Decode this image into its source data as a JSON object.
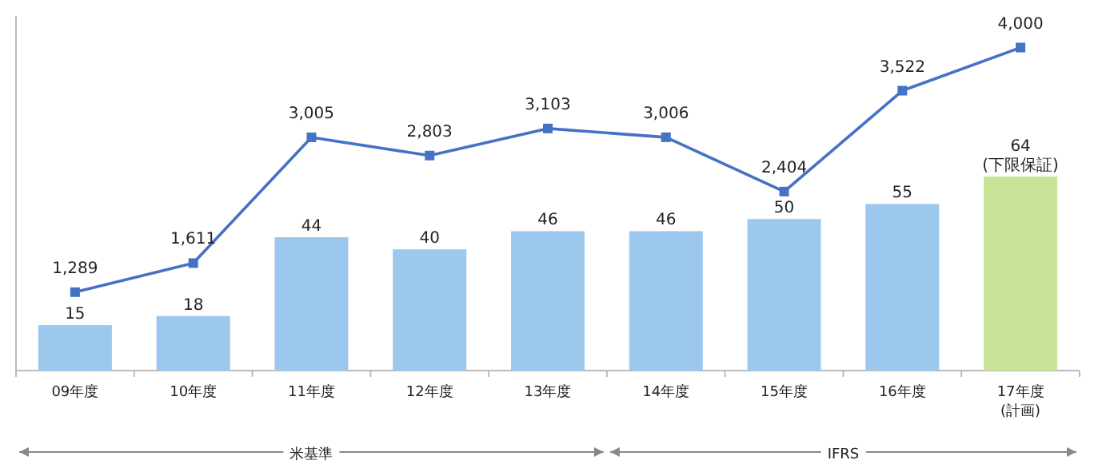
{
  "chart_data": {
    "type": "bar",
    "categories": [
      "09年度",
      "10年度",
      "11年度",
      "12年度",
      "13年度",
      "14年度",
      "15年度",
      "16年度",
      "17年度\n(計画)"
    ],
    "series": [
      {
        "colors": [
          "#9dc8ee",
          "#9dc8ee",
          "#9dc8ee",
          "#9dc8ee",
          "#9dc8ee",
          "#9dc8ee",
          "#9dc8ee",
          "#9dc8ee",
          "#c8e496"
        ],
        "values": [
          15,
          18,
          44,
          40,
          46,
          46,
          50,
          55,
          64
        ],
        "value_labels": [
          "15",
          "18",
          "44",
          "40",
          "46",
          "46",
          "50",
          "55",
          "64\n(下限保証)"
        ]
      },
      {
        "type": "line",
        "axis": "y2",
        "color": "#4472c4",
        "marker": "square",
        "values": [
          1289,
          1611,
          3005,
          2803,
          3103,
          3006,
          2404,
          3522,
          4000
        ],
        "value_labels": [
          "1,289",
          "1,611",
          "3,005",
          "2,803",
          "3,103",
          "3,006",
          "2,404",
          "3,522",
          "4,000"
        ]
      }
    ],
    "ylim": [
      0,
      117
    ],
    "y2lim": [
      420,
      4350
    ],
    "annotations": [
      "米基準",
      "IFRS"
    ]
  }
}
